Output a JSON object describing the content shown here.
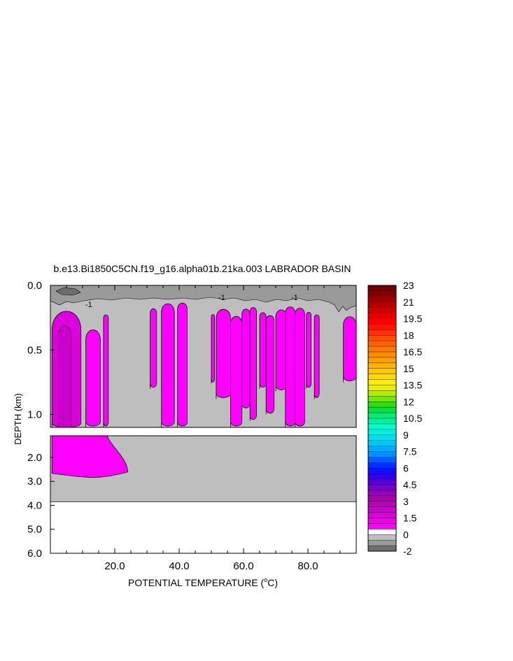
{
  "chart_data": {
    "type": "heatmap",
    "title": "b.e13.Bi1850C5CN.f19_g16.alpha01b.21ka.003 LABRADOR BASIN",
    "xlabel": "POTENTIAL TEMPERATURE (°C)",
    "xlabel_parts": {
      "pre": "POTENTIAL TEMPERATURE (",
      "sup": "o",
      "post": "C)"
    },
    "ylabel": "DEPTH (km)",
    "xlim": [
      0,
      95
    ],
    "x_ticks": [
      20,
      40,
      60,
      80
    ],
    "x_tick_labels": [
      "20.0",
      "40.0",
      "60.0",
      "80.0"
    ],
    "upper_panel": {
      "ylim": [
        0.0,
        1.1
      ],
      "y_ticks": [
        0.0,
        0.5,
        1.0
      ],
      "y_tick_labels": [
        "0.0",
        "0.5",
        "1.0"
      ]
    },
    "lower_panel": {
      "ylim": [
        1.1,
        6.0
      ],
      "y_ticks": [
        2.0,
        3.0,
        4.0,
        5.0,
        6.0
      ],
      "y_tick_labels": [
        "2.0",
        "3.0",
        "4.0",
        "5.0",
        "6.0"
      ],
      "data_bottom_depth": 3.85
    },
    "contour_labels": [
      "-1",
      "-1",
      "-1"
    ],
    "colorbar": {
      "tick_labels": [
        "23",
        "21",
        "19.5",
        "18",
        "16.5",
        "15",
        "13.5",
        "12",
        "10.5",
        "9",
        "7.5",
        "6",
        "4.5",
        "3",
        "1.5",
        "0",
        "-2"
      ],
      "colors": [
        "#6e6e6e",
        "#9a9a9a",
        "#bebebe",
        "#ffffff",
        "#ff00ff",
        "#ee00ee",
        "#dd00dd",
        "#cc00cc",
        "#bb00bb",
        "#aa00aa",
        "#9900bb",
        "#7700cc",
        "#5500dd",
        "#3300ee",
        "#1010ff",
        "#0030ff",
        "#0060ff",
        "#0090ff",
        "#00aaff",
        "#00c8f0",
        "#00e0e8",
        "#00f0e0",
        "#00ffcc",
        "#00f0a0",
        "#00ee70",
        "#00e040",
        "#30e000",
        "#70e800",
        "#b0f000",
        "#e8f000",
        "#ffef00",
        "#ffdc00",
        "#ffc800",
        "#ffb400",
        "#ffa000",
        "#ff8c00",
        "#ff7800",
        "#ff6400",
        "#ff5000",
        "#ff3200",
        "#ff1400",
        "#ff0000",
        "#e60000",
        "#cc0000",
        "#b40000",
        "#9c0000",
        "#860000",
        "#700000"
      ]
    },
    "series": [
      {
        "values": [
          {
            "x0": 0.5,
            "x1": 9.5,
            "top": 0.15,
            "bottom": 6.0,
            "panel": "upper",
            "shade": "dark"
          },
          {
            "x0": 11.0,
            "x1": 15.5,
            "top": 0.32,
            "bottom": 1.1,
            "panel": "upper"
          },
          {
            "x0": 16.5,
            "x1": 18.0,
            "top": 0.22,
            "bottom": 1.1,
            "panel": "upper"
          },
          {
            "x0": 31.0,
            "x1": 33.0,
            "top": 0.17,
            "bottom": 0.8,
            "panel": "upper"
          },
          {
            "x0": 34.5,
            "x1": 38.5,
            "top": 0.12,
            "bottom": 1.1,
            "panel": "upper"
          },
          {
            "x0": 39.5,
            "x1": 42.5,
            "top": 0.12,
            "bottom": 1.1,
            "panel": "upper"
          },
          {
            "x0": 50.0,
            "x1": 51.0,
            "top": 0.22,
            "bottom": 0.76,
            "panel": "upper"
          },
          {
            "x0": 51.5,
            "x1": 56.0,
            "top": 0.16,
            "bottom": 0.88,
            "panel": "upper"
          },
          {
            "x0": 56.0,
            "x1": 59.5,
            "top": 0.22,
            "bottom": 1.1,
            "panel": "upper"
          },
          {
            "x0": 59.5,
            "x1": 62.0,
            "top": 0.17,
            "bottom": 0.96,
            "panel": "upper"
          },
          {
            "x0": 62.0,
            "x1": 64.0,
            "top": 0.16,
            "bottom": 1.05,
            "panel": "upper"
          },
          {
            "x0": 65.0,
            "x1": 67.0,
            "top": 0.2,
            "bottom": 0.8,
            "panel": "upper"
          },
          {
            "x0": 67.0,
            "x1": 69.5,
            "top": 0.22,
            "bottom": 1.0,
            "panel": "upper"
          },
          {
            "x0": 70.0,
            "x1": 73.5,
            "top": 0.17,
            "bottom": 0.82,
            "panel": "upper"
          },
          {
            "x0": 73.0,
            "x1": 76.0,
            "top": 0.15,
            "bottom": 1.1,
            "panel": "upper"
          },
          {
            "x0": 76.0,
            "x1": 79.0,
            "top": 0.16,
            "bottom": 1.1,
            "panel": "upper"
          },
          {
            "x0": 79.5,
            "x1": 81.0,
            "top": 0.2,
            "bottom": 0.8,
            "panel": "upper"
          },
          {
            "x0": 82.0,
            "x1": 83.5,
            "top": 0.22,
            "bottom": 0.88,
            "panel": "upper"
          },
          {
            "x0": 91.0,
            "x1": 95.0,
            "top": 0.22,
            "bottom": 0.75,
            "panel": "upper"
          },
          {
            "x0": 0.5,
            "x1": 24.0,
            "top": 1.1,
            "bottom": 2.9,
            "panel": "lower"
          }
        ]
      }
    ]
  }
}
